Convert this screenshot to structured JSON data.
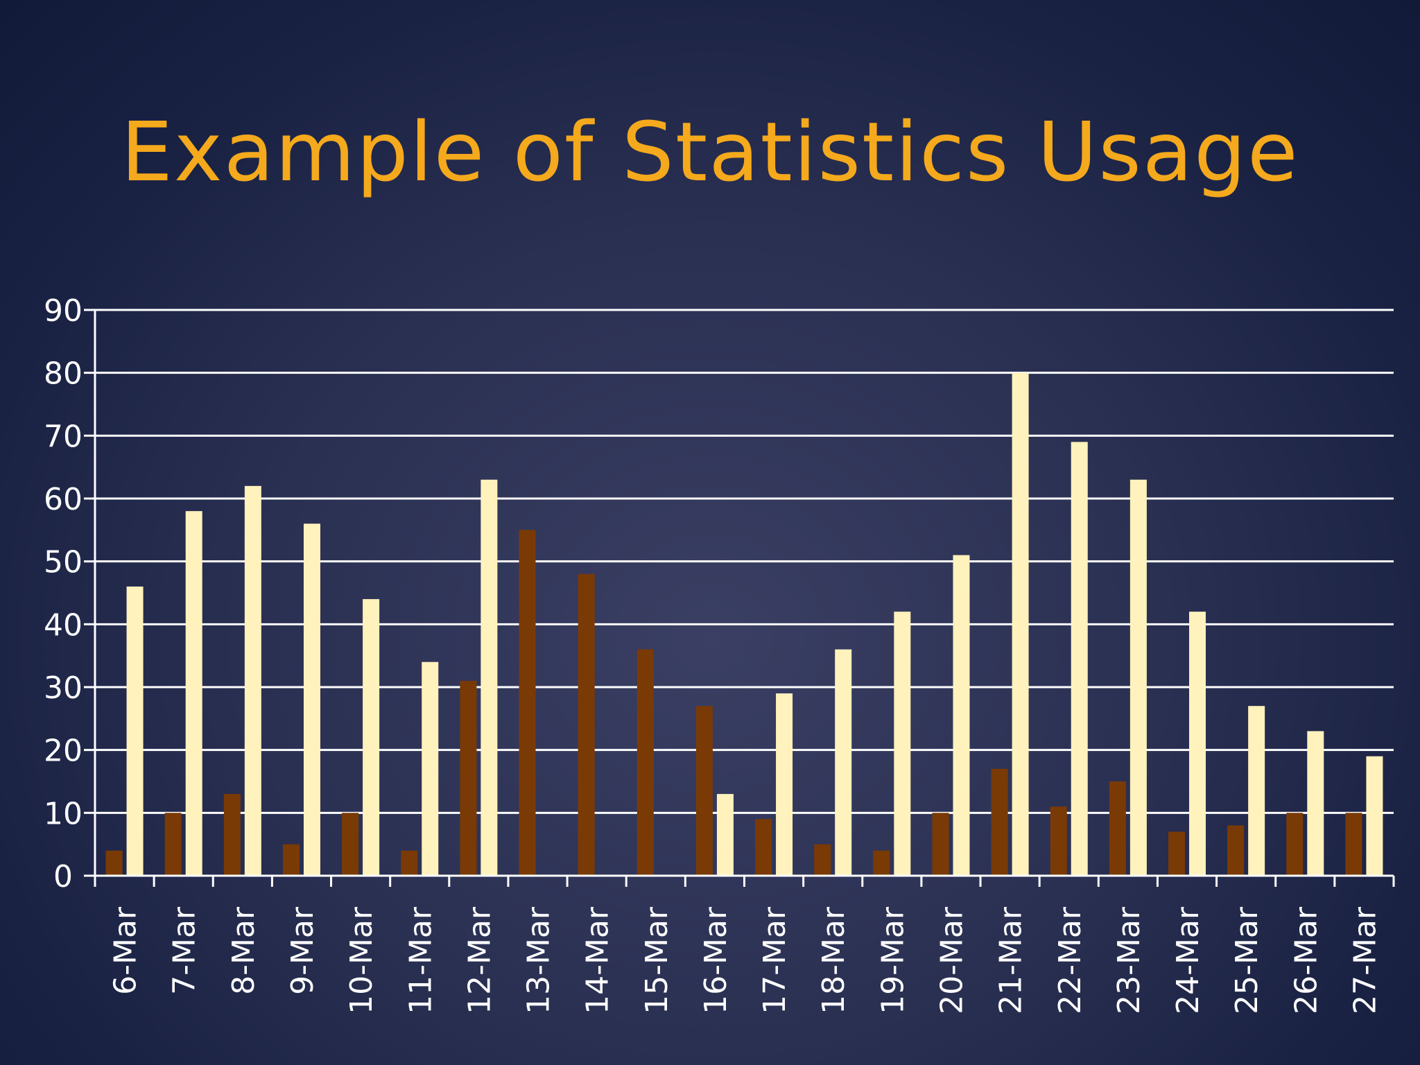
{
  "slide": {
    "title": "Example of Statistics Usage"
  },
  "chart_data": {
    "type": "bar",
    "title": "",
    "xlabel": "",
    "ylabel": "",
    "ylim": [
      0,
      90
    ],
    "yticks": [
      0,
      10,
      20,
      30,
      40,
      50,
      60,
      70,
      80,
      90
    ],
    "grid": true,
    "legend": "none",
    "categories": [
      "6-Mar",
      "7-Mar",
      "8-Mar",
      "9-Mar",
      "10-Mar",
      "11-Mar",
      "12-Mar",
      "13-Mar",
      "14-Mar",
      "15-Mar",
      "16-Mar",
      "17-Mar",
      "18-Mar",
      "19-Mar",
      "20-Mar",
      "21-Mar",
      "22-Mar",
      "23-Mar",
      "24-Mar",
      "25-Mar",
      "26-Mar",
      "27-Mar"
    ],
    "series": [
      {
        "color": "#7a3a06",
        "values": [
          4,
          10,
          13,
          5,
          10,
          4,
          31,
          55,
          48,
          36,
          27,
          9,
          5,
          4,
          10,
          17,
          11,
          15,
          7,
          8,
          10,
          10
        ]
      },
      {
        "color": "#fff2bc",
        "values": [
          46,
          58,
          62,
          56,
          44,
          34,
          63,
          0,
          0,
          0,
          13,
          29,
          36,
          42,
          51,
          80,
          69,
          63,
          42,
          27,
          23,
          19
        ]
      }
    ]
  }
}
